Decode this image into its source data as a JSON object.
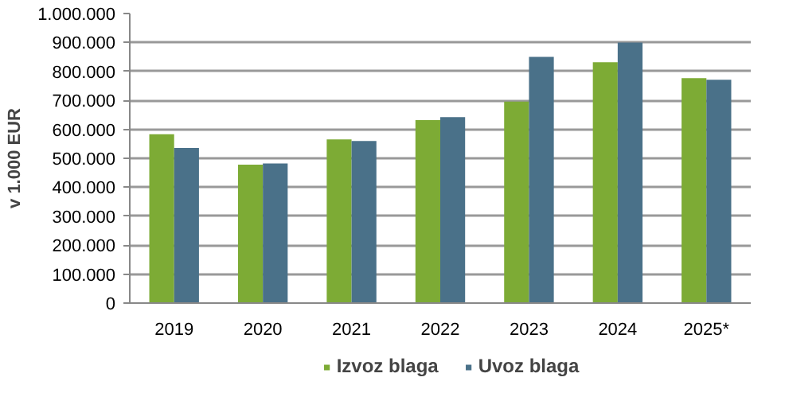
{
  "chart_data": {
    "type": "bar",
    "ylabel": "v 1.000 EUR",
    "categories": [
      "2019",
      "2020",
      "2021",
      "2022",
      "2023",
      "2024",
      "2025*"
    ],
    "series": [
      {
        "name": "Izvoz blaga",
        "color": "#7dab35",
        "values": [
          583000,
          478000,
          565000,
          632000,
          696000,
          832000,
          777000
        ]
      },
      {
        "name": "Uvoz blaga",
        "color": "#4a7189",
        "values": [
          536000,
          482000,
          560000,
          642000,
          850000,
          900000,
          771000
        ]
      }
    ],
    "ylim": [
      0,
      1000000
    ],
    "yticks": [
      {
        "value": 0,
        "label": "0"
      },
      {
        "value": 100000,
        "label": "100.000"
      },
      {
        "value": 200000,
        "label": "200.000"
      },
      {
        "value": 300000,
        "label": "300.000"
      },
      {
        "value": 400000,
        "label": "400.000"
      },
      {
        "value": 500000,
        "label": "500.000"
      },
      {
        "value": 600000,
        "label": "600.000"
      },
      {
        "value": 700000,
        "label": "700.000"
      },
      {
        "value": 800000,
        "label": "800.000"
      },
      {
        "value": 900000,
        "label": "900.000"
      },
      {
        "value": 1000000,
        "label": "1.000.000"
      }
    ],
    "grid": "y",
    "legend": "bottom"
  }
}
